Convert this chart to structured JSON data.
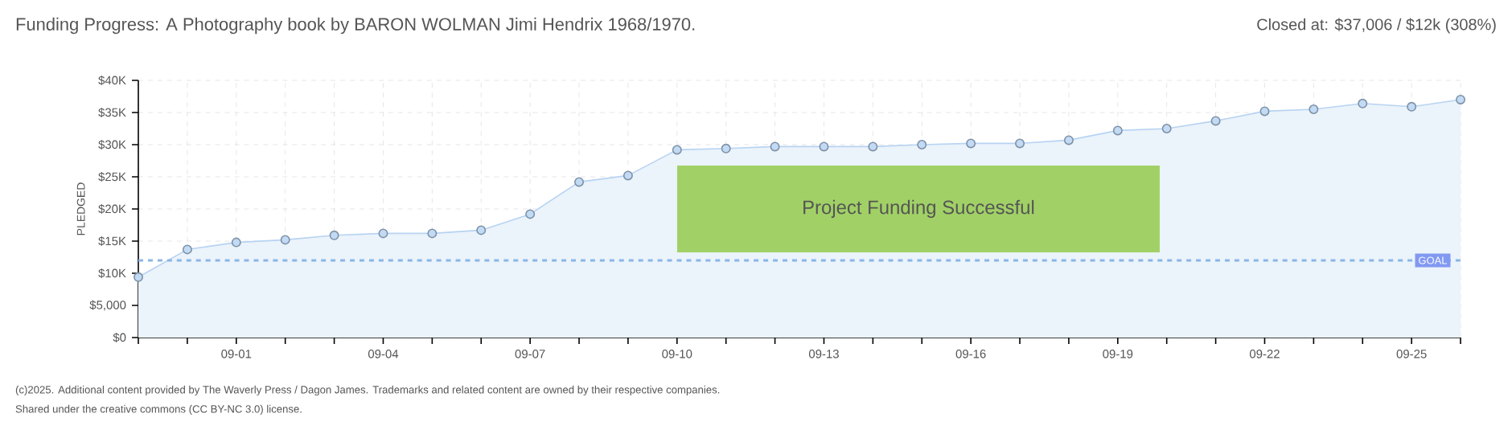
{
  "chart_data": {
    "type": "area",
    "title": "Funding Progress: A Photography book by BARON WOLMAN Jimi Hendrix 1968/1970.",
    "ylabel": "PLEDGED",
    "categories": [
      null,
      null,
      "09-01",
      null,
      null,
      "09-04",
      null,
      null,
      "09-07",
      null,
      null,
      "09-10",
      null,
      null,
      "09-13",
      null,
      null,
      "09-16",
      null,
      null,
      "09-19",
      null,
      null,
      "09-22",
      null,
      null,
      "09-25",
      null
    ],
    "values": [
      9400,
      13700,
      14800,
      15200,
      15900,
      16200,
      16200,
      16700,
      19200,
      24200,
      25200,
      29200,
      29400,
      29700,
      29700,
      29700,
      30000,
      30200,
      30200,
      30700,
      32200,
      32500,
      33700,
      35200,
      35500,
      36400,
      35900,
      37006
    ],
    "color": "#b7d3f2",
    "marker": "circle",
    "grid": true,
    "ylim": [
      0,
      40000
    ],
    "yticks": [
      {
        "value": 0,
        "label": "$0"
      },
      {
        "value": 5000,
        "label": "$5,000"
      },
      {
        "value": 10000,
        "label": "$10K"
      },
      {
        "value": 15000,
        "label": "$15K"
      },
      {
        "value": 20000,
        "label": "$20K"
      },
      {
        "value": 25000,
        "label": "$25K"
      },
      {
        "value": 30000,
        "label": "$30K"
      },
      {
        "value": 35000,
        "label": "$35K"
      },
      {
        "value": 40000,
        "label": "$40K"
      }
    ],
    "ref_lines": [
      {
        "axis": "y",
        "value": 12000,
        "label": "GOAL",
        "color": "#8bb6e6",
        "line_style": "dashed"
      }
    ],
    "annotations": [
      "Project Funding Successful",
      "Closed at: $37,006 / $12k (308%)",
      "(c)2025. Additional content provided by The Waverly Press / Dagon James. Trademarks and related content are owned by their respective companies.",
      "Shared under the creative commons (CC BY-NC 3.0) license."
    ]
  }
}
